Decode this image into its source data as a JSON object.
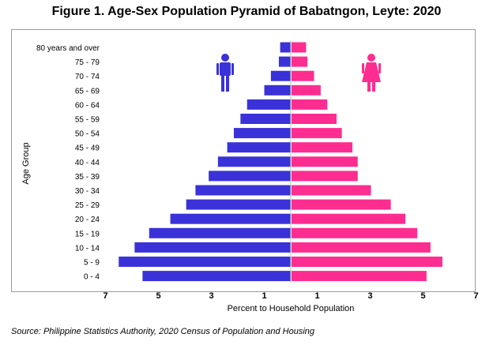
{
  "chart_data": {
    "type": "bar",
    "title": "Figure 1. Age-Sex Population Pyramid of Babatngon, Leyte: 2020",
    "xlabel": "Percent to Household Population",
    "ylabel": "Age Group",
    "xlim": [
      -7,
      7
    ],
    "x_ticks": [
      -7,
      -5,
      -3,
      -1,
      1,
      3,
      5,
      7
    ],
    "x_tick_labels": [
      "7",
      "5",
      "3",
      "1",
      "1",
      "3",
      "5",
      "7"
    ],
    "categories": [
      "80 years and over",
      "75 - 79",
      "70 - 74",
      "65 - 69",
      "60 - 64",
      "55 - 59",
      "50 - 54",
      "45 - 49",
      "40 - 44",
      "35 - 39",
      "30 - 34",
      "25 - 29",
      "20 - 24",
      "15 - 19",
      "10 - 14",
      "5 - 9",
      "0 - 4"
    ],
    "series": [
      {
        "side": "left",
        "color": "#3a32d8",
        "icon": "male-icon",
        "values": [
          0.4,
          0.45,
          0.75,
          1.0,
          1.65,
          1.9,
          2.15,
          2.4,
          2.75,
          3.1,
          3.6,
          3.95,
          4.55,
          5.35,
          5.9,
          6.5,
          5.6
        ]
      },
      {
        "side": "right",
        "color": "#ff2d8f",
        "icon": "female-icon",
        "values": [
          0.55,
          0.6,
          0.85,
          1.1,
          1.35,
          1.7,
          1.9,
          2.3,
          2.5,
          2.5,
          3.0,
          3.75,
          4.3,
          4.75,
          5.25,
          5.7,
          5.1
        ]
      }
    ],
    "grid": false,
    "legend": "icons"
  },
  "source_note": "Source: Philippine Statistics Authority, 2020 Census of Population and Housing"
}
